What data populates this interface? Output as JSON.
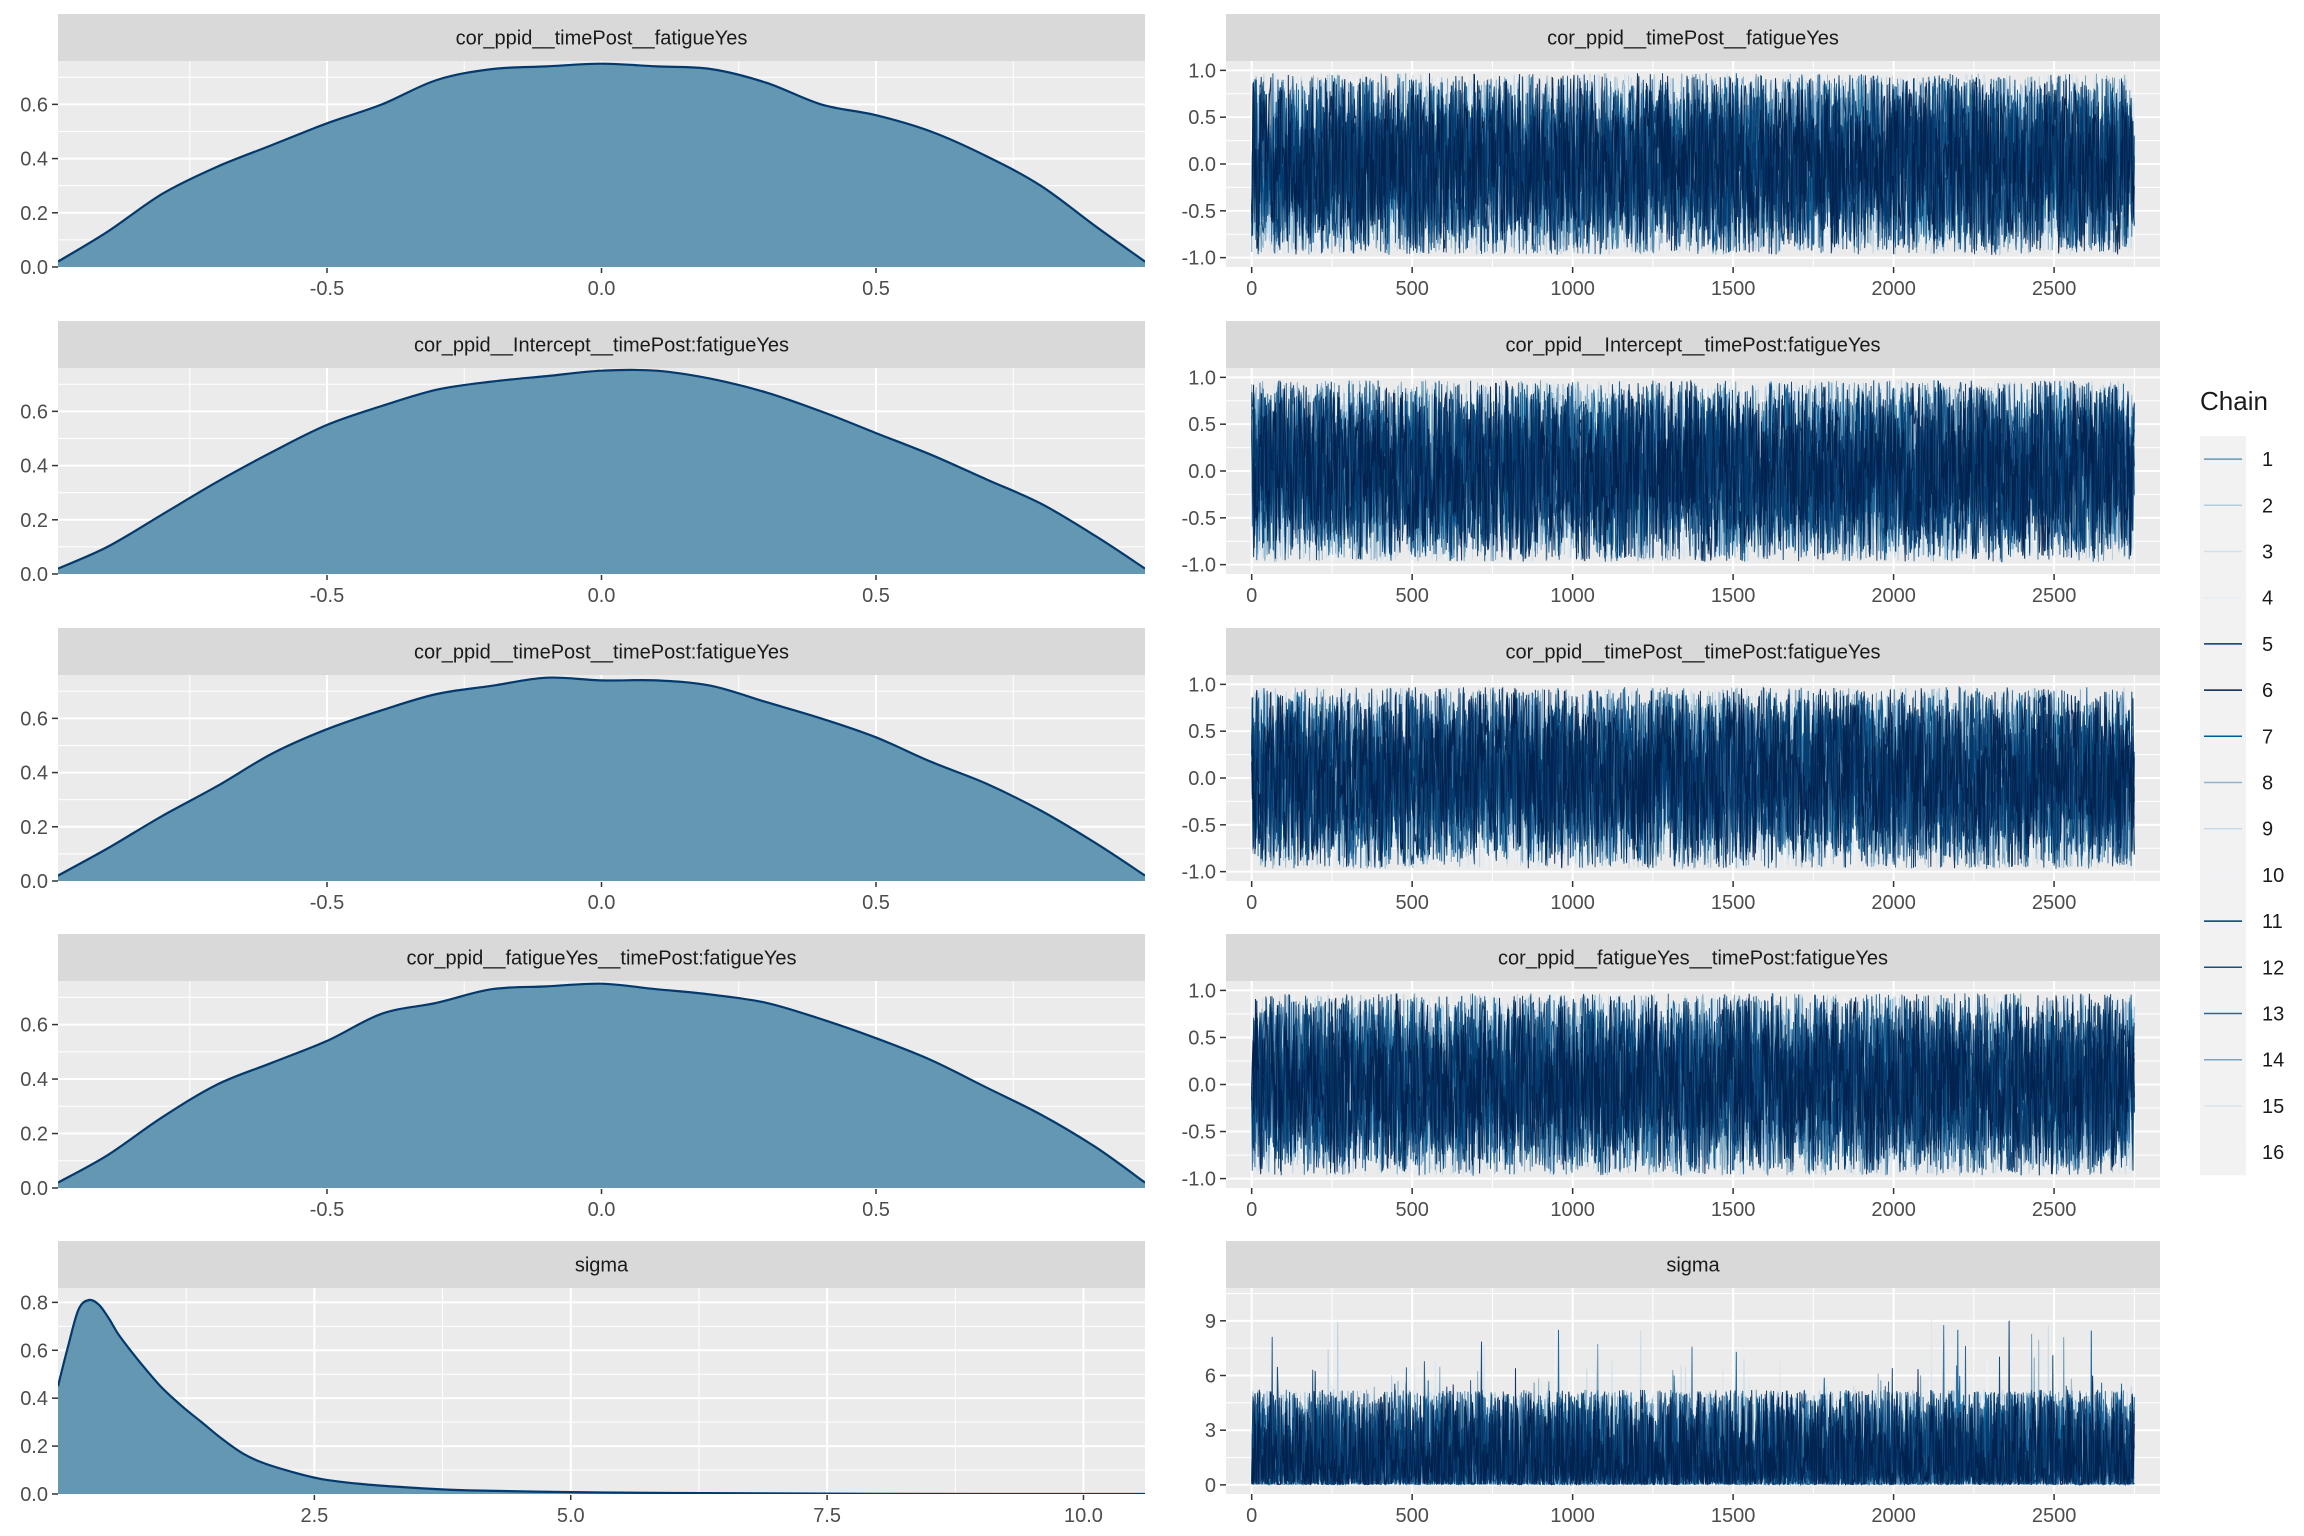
{
  "colors": {
    "panel_bg": "#EBEBEB",
    "strip_bg": "#D9D9D9",
    "grid": "#FFFFFF",
    "density_fill": "#6497B1",
    "density_line": "#03396C",
    "chain_palette": [
      "#6497B1",
      "#B3CDE0",
      "#D1E1EC",
      "#E6EEF5",
      "#03396C",
      "#011F4B",
      "#005B96",
      "#8FB4CE",
      "#C6DAE7",
      "#EEF3F8",
      "#03396C",
      "#17507F",
      "#2A6699",
      "#7AA6C2",
      "#D9E6EF",
      "#F0F5F9"
    ],
    "text": "#4D4D4D",
    "title_text": "#1A1A1A"
  },
  "legend": {
    "title": "Chain",
    "entries": [
      "1",
      "2",
      "3",
      "4",
      "5",
      "6",
      "7",
      "8",
      "9",
      "10",
      "11",
      "12",
      "13",
      "14",
      "15",
      "16"
    ]
  },
  "chart_data": [
    {
      "type": "area",
      "title": "cor_ppid__timePost__fatigueYes",
      "xlim": [
        -0.99,
        0.99
      ],
      "ylim": [
        0,
        0.76
      ],
      "x_ticks": [
        "-0.5",
        "0.0",
        "0.5"
      ],
      "x_tick_values": [
        -0.5,
        0.0,
        0.5
      ],
      "y_ticks": [
        "0.0",
        "0.2",
        "0.4",
        "0.6"
      ],
      "y_tick_values": [
        0.0,
        0.2,
        0.4,
        0.6
      ],
      "x": [
        -0.99,
        -0.9,
        -0.8,
        -0.7,
        -0.6,
        -0.5,
        -0.4,
        -0.3,
        -0.2,
        -0.1,
        0.0,
        0.1,
        0.2,
        0.3,
        0.4,
        0.5,
        0.6,
        0.7,
        0.8,
        0.9,
        0.99
      ],
      "y": [
        0.02,
        0.13,
        0.27,
        0.37,
        0.45,
        0.53,
        0.6,
        0.69,
        0.73,
        0.74,
        0.75,
        0.74,
        0.73,
        0.68,
        0.6,
        0.56,
        0.5,
        0.41,
        0.3,
        0.15,
        0.02
      ]
    },
    {
      "type": "line",
      "title": "cor_ppid__timePost__fatigueYes",
      "xlim": [
        -80,
        2830
      ],
      "ylim": [
        -1.1,
        1.1
      ],
      "x_ticks": [
        "0",
        "500",
        "1000",
        "1500",
        "2000",
        "2500"
      ],
      "x_tick_values": [
        0,
        500,
        1000,
        1500,
        2000,
        2500
      ],
      "y_ticks": [
        "-1.0",
        "-0.5",
        "0.0",
        "0.5",
        "1.0"
      ],
      "y_tick_values": [
        -1.0,
        -0.5,
        0.0,
        0.5,
        1.0
      ],
      "trace": {
        "n_iter": 2750,
        "chains": 16,
        "dist": "uniform",
        "min": -0.97,
        "max": 0.97
      }
    },
    {
      "type": "area",
      "title": "cor_ppid__Intercept__timePost:fatigueYes",
      "xlim": [
        -0.99,
        0.99
      ],
      "ylim": [
        0,
        0.76
      ],
      "x_ticks": [
        "-0.5",
        "0.0",
        "0.5"
      ],
      "x_tick_values": [
        -0.5,
        0.0,
        0.5
      ],
      "y_ticks": [
        "0.0",
        "0.2",
        "0.4",
        "0.6"
      ],
      "y_tick_values": [
        0.0,
        0.2,
        0.4,
        0.6
      ],
      "x": [
        -0.99,
        -0.9,
        -0.8,
        -0.7,
        -0.6,
        -0.5,
        -0.4,
        -0.3,
        -0.2,
        -0.1,
        0.0,
        0.1,
        0.2,
        0.3,
        0.4,
        0.5,
        0.6,
        0.7,
        0.8,
        0.9,
        0.99
      ],
      "y": [
        0.02,
        0.1,
        0.22,
        0.34,
        0.45,
        0.55,
        0.62,
        0.68,
        0.71,
        0.73,
        0.75,
        0.75,
        0.72,
        0.67,
        0.6,
        0.52,
        0.44,
        0.35,
        0.26,
        0.14,
        0.02
      ]
    },
    {
      "type": "line",
      "title": "cor_ppid__Intercept__timePost:fatigueYes",
      "xlim": [
        -80,
        2830
      ],
      "ylim": [
        -1.1,
        1.1
      ],
      "x_ticks": [
        "0",
        "500",
        "1000",
        "1500",
        "2000",
        "2500"
      ],
      "x_tick_values": [
        0,
        500,
        1000,
        1500,
        2000,
        2500
      ],
      "y_ticks": [
        "-1.0",
        "-0.5",
        "0.0",
        "0.5",
        "1.0"
      ],
      "y_tick_values": [
        -1.0,
        -0.5,
        0.0,
        0.5,
        1.0
      ],
      "trace": {
        "n_iter": 2750,
        "chains": 16,
        "dist": "uniform",
        "min": -0.97,
        "max": 0.97
      }
    },
    {
      "type": "area",
      "title": "cor_ppid__timePost__timePost:fatigueYes",
      "xlim": [
        -0.99,
        0.99
      ],
      "ylim": [
        0,
        0.76
      ],
      "x_ticks": [
        "-0.5",
        "0.0",
        "0.5"
      ],
      "x_tick_values": [
        -0.5,
        0.0,
        0.5
      ],
      "y_ticks": [
        "0.0",
        "0.2",
        "0.4",
        "0.6"
      ],
      "y_tick_values": [
        0.0,
        0.2,
        0.4,
        0.6
      ],
      "x": [
        -0.99,
        -0.9,
        -0.8,
        -0.7,
        -0.6,
        -0.5,
        -0.4,
        -0.3,
        -0.2,
        -0.1,
        0.0,
        0.1,
        0.2,
        0.3,
        0.4,
        0.5,
        0.6,
        0.7,
        0.8,
        0.9,
        0.99
      ],
      "y": [
        0.02,
        0.12,
        0.24,
        0.35,
        0.47,
        0.56,
        0.63,
        0.69,
        0.72,
        0.75,
        0.74,
        0.74,
        0.72,
        0.66,
        0.6,
        0.53,
        0.44,
        0.36,
        0.26,
        0.14,
        0.02
      ]
    },
    {
      "type": "line",
      "title": "cor_ppid__timePost__timePost:fatigueYes",
      "xlim": [
        -80,
        2830
      ],
      "ylim": [
        -1.1,
        1.1
      ],
      "x_ticks": [
        "0",
        "500",
        "1000",
        "1500",
        "2000",
        "2500"
      ],
      "x_tick_values": [
        0,
        500,
        1000,
        1500,
        2000,
        2500
      ],
      "y_ticks": [
        "-1.0",
        "-0.5",
        "0.0",
        "0.5",
        "1.0"
      ],
      "y_tick_values": [
        -1.0,
        -0.5,
        0.0,
        0.5,
        1.0
      ],
      "trace": {
        "n_iter": 2750,
        "chains": 16,
        "dist": "uniform",
        "min": -0.97,
        "max": 0.97
      }
    },
    {
      "type": "area",
      "title": "cor_ppid__fatigueYes__timePost:fatigueYes",
      "xlim": [
        -0.99,
        0.99
      ],
      "ylim": [
        0,
        0.76
      ],
      "x_ticks": [
        "-0.5",
        "0.0",
        "0.5"
      ],
      "x_tick_values": [
        -0.5,
        0.0,
        0.5
      ],
      "y_ticks": [
        "0.0",
        "0.2",
        "0.4",
        "0.6"
      ],
      "y_tick_values": [
        0.0,
        0.2,
        0.4,
        0.6
      ],
      "x": [
        -0.99,
        -0.9,
        -0.8,
        -0.7,
        -0.6,
        -0.5,
        -0.4,
        -0.3,
        -0.2,
        -0.1,
        0.0,
        0.1,
        0.2,
        0.3,
        0.4,
        0.5,
        0.6,
        0.7,
        0.8,
        0.9,
        0.99
      ],
      "y": [
        0.02,
        0.12,
        0.26,
        0.38,
        0.46,
        0.54,
        0.64,
        0.68,
        0.73,
        0.74,
        0.75,
        0.73,
        0.71,
        0.68,
        0.62,
        0.55,
        0.47,
        0.37,
        0.27,
        0.15,
        0.02
      ]
    },
    {
      "type": "line",
      "title": "cor_ppid__fatigueYes__timePost:fatigueYes",
      "xlim": [
        -80,
        2830
      ],
      "ylim": [
        -1.1,
        1.1
      ],
      "x_ticks": [
        "0",
        "500",
        "1000",
        "1500",
        "2000",
        "2500"
      ],
      "x_tick_values": [
        0,
        500,
        1000,
        1500,
        2000,
        2500
      ],
      "y_ticks": [
        "-1.0",
        "-0.5",
        "0.0",
        "0.5",
        "1.0"
      ],
      "y_tick_values": [
        -1.0,
        -0.5,
        0.0,
        0.5,
        1.0
      ],
      "trace": {
        "n_iter": 2750,
        "chains": 16,
        "dist": "uniform",
        "min": -0.97,
        "max": 0.97
      }
    },
    {
      "type": "area",
      "title": "sigma",
      "xlim": [
        0,
        10.6
      ],
      "ylim": [
        0,
        0.86
      ],
      "x_ticks": [
        "2.5",
        "5.0",
        "7.5",
        "10.0"
      ],
      "x_tick_values": [
        2.5,
        5.0,
        7.5,
        10.0
      ],
      "y_ticks": [
        "0.0",
        "0.2",
        "0.4",
        "0.6",
        "0.8"
      ],
      "y_tick_values": [
        0.0,
        0.2,
        0.4,
        0.6,
        0.8
      ],
      "x": [
        0.0,
        0.1,
        0.2,
        0.3,
        0.4,
        0.5,
        0.6,
        0.8,
        1.0,
        1.2,
        1.4,
        1.6,
        1.8,
        2.0,
        2.3,
        2.6,
        3.0,
        3.5,
        4.0,
        5.0,
        6.0,
        8.0,
        10.6
      ],
      "y": [
        0.45,
        0.62,
        0.77,
        0.81,
        0.79,
        0.73,
        0.66,
        0.55,
        0.45,
        0.37,
        0.3,
        0.23,
        0.17,
        0.13,
        0.09,
        0.06,
        0.04,
        0.025,
        0.015,
        0.008,
        0.004,
        0.001,
        0.0
      ]
    },
    {
      "type": "line",
      "title": "sigma",
      "xlim": [
        -80,
        2830
      ],
      "ylim": [
        -0.5,
        10.8
      ],
      "x_ticks": [
        "0",
        "500",
        "1000",
        "1500",
        "2000",
        "2500"
      ],
      "x_tick_values": [
        0,
        500,
        1000,
        1500,
        2000,
        2500
      ],
      "y_ticks": [
        "0",
        "3",
        "6",
        "9"
      ],
      "y_tick_values": [
        0,
        3,
        6,
        9
      ],
      "trace": {
        "n_iter": 2750,
        "chains": 16,
        "dist": "skewed",
        "min": 0.02,
        "max": 10.5
      }
    }
  ]
}
